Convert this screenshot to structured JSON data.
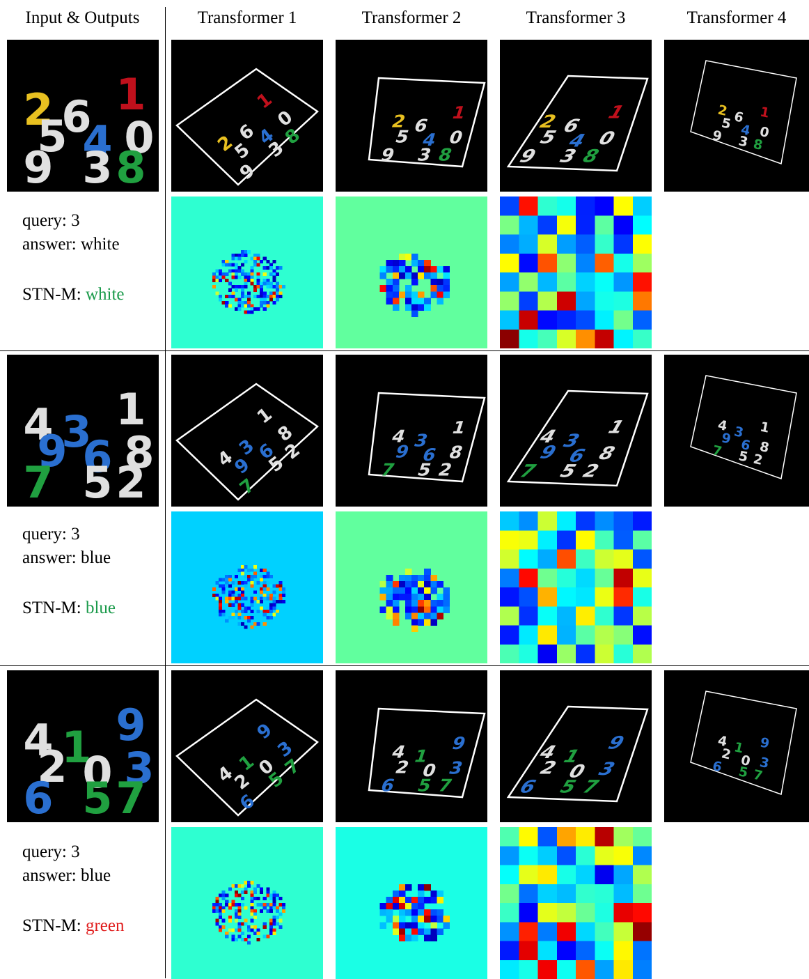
{
  "headers": [
    "Input & Outputs",
    "Transformer 1",
    "Transformer 2",
    "Transformer 3",
    "Transformer 4"
  ],
  "examples": [
    {
      "query_label": "query:",
      "query": "3",
      "answer_label": "answer:",
      "answer": "white",
      "model_label": "STN-M:",
      "prediction": "white",
      "correct": true,
      "input_digits": [
        {
          "t": "2",
          "c": "#e8c020"
        },
        {
          "t": "6",
          "c": "#e0e0e0"
        },
        {
          "t": "1",
          "c": "#c0101c"
        },
        {
          "t": "5",
          "c": "#e0e0e0"
        },
        {
          "t": "4",
          "c": "#2a6fd0"
        },
        {
          "t": "0",
          "c": "#e0e0e0"
        },
        {
          "t": "9",
          "c": "#e0e0e0"
        },
        {
          "t": "3",
          "c": "#e0e0e0"
        },
        {
          "t": "8",
          "c": "#20a040"
        }
      ]
    },
    {
      "query_label": "query:",
      "query": "3",
      "answer_label": "answer:",
      "answer": "blue",
      "model_label": "STN-M:",
      "prediction": "blue",
      "correct": true,
      "input_digits": [
        {
          "t": "4",
          "c": "#e0e0e0"
        },
        {
          "t": "3",
          "c": "#2a6fd0"
        },
        {
          "t": "1",
          "c": "#e0e0e0"
        },
        {
          "t": "9",
          "c": "#2a6fd0"
        },
        {
          "t": "6",
          "c": "#2a6fd0"
        },
        {
          "t": "8",
          "c": "#e0e0e0"
        },
        {
          "t": "7",
          "c": "#20a040"
        },
        {
          "t": "5",
          "c": "#e0e0e0"
        },
        {
          "t": "2",
          "c": "#e0e0e0"
        }
      ]
    },
    {
      "query_label": "query:",
      "query": "3",
      "answer_label": "answer:",
      "answer": "blue",
      "model_label": "STN-M:",
      "prediction": "green",
      "correct": false,
      "input_digits": [
        {
          "t": "4",
          "c": "#e0e0e0"
        },
        {
          "t": "1",
          "c": "#20a040"
        },
        {
          "t": "9",
          "c": "#2a6fd0"
        },
        {
          "t": "2",
          "c": "#e0e0e0"
        },
        {
          "t": "0",
          "c": "#e0e0e0"
        },
        {
          "t": "3",
          "c": "#2a6fd0"
        },
        {
          "t": "6",
          "c": "#2a6fd0"
        },
        {
          "t": "5",
          "c": "#20a040"
        },
        {
          "t": "7",
          "c": "#20a040"
        }
      ]
    }
  ],
  "colors": {
    "correct": "#1a9a4a",
    "incorrect": "#e01b1b",
    "frame": "#ffffff"
  }
}
